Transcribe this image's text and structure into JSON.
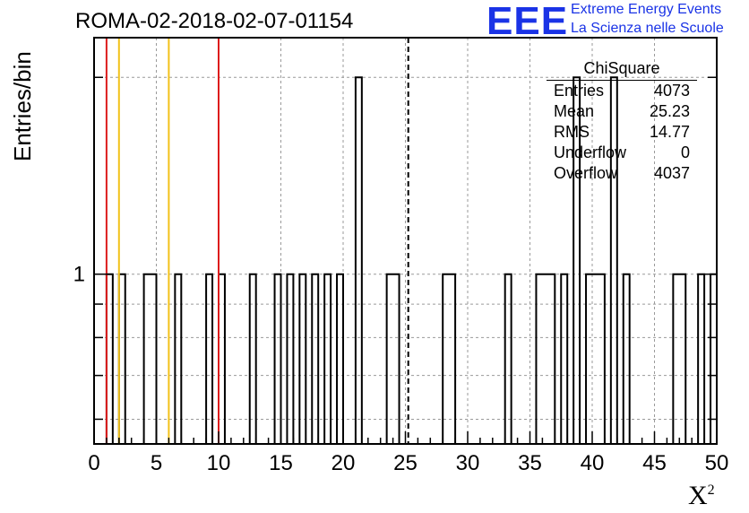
{
  "header": {
    "title": "ROMA-02-2018-02-07-01154",
    "logo_text": "EEE",
    "logo_line1": "Extreme Energy Events",
    "logo_line2": "La Scienza nelle Scuole"
  },
  "stats_box": {
    "title": "ChiSquare",
    "rows": [
      {
        "label": "Entries",
        "value": "4073"
      },
      {
        "label": "Mean",
        "value": "25.23"
      },
      {
        "label": "RMS",
        "value": "14.77"
      },
      {
        "label": "Underflow",
        "value": "0"
      },
      {
        "label": "Overflow",
        "value": "4037"
      }
    ]
  },
  "colors": {
    "red_line": "#dd1c1c",
    "yellow_line": "#f2c21a",
    "grid": "#9a9a9a",
    "logo": "#1a33e6"
  },
  "chart_data": {
    "type": "bar",
    "title": "ROMA-02-2018-02-07-01154",
    "xlabel": "X",
    "xlabel_sup": "2",
    "ylabel": "Entries/bin",
    "xlim": [
      0,
      50
    ],
    "ylim": [
      0.55,
      2.3
    ],
    "yscale": "log",
    "bin_width": 0.5,
    "x_ticks": [
      "0",
      "5",
      "10",
      "15",
      "20",
      "25",
      "30",
      "35",
      "40",
      "45",
      "50"
    ],
    "y_ticks": [
      "1"
    ],
    "grid": true,
    "bins": [
      {
        "x": 1.0,
        "y": 1
      },
      {
        "x": 2.0,
        "y": 1
      },
      {
        "x": 4.0,
        "y": 1
      },
      {
        "x": 4.5,
        "y": 1
      },
      {
        "x": 6.5,
        "y": 1
      },
      {
        "x": 9.0,
        "y": 1
      },
      {
        "x": 10.0,
        "y": 1
      },
      {
        "x": 12.5,
        "y": 1
      },
      {
        "x": 14.5,
        "y": 1
      },
      {
        "x": 15.5,
        "y": 1
      },
      {
        "x": 16.5,
        "y": 1
      },
      {
        "x": 17.5,
        "y": 1
      },
      {
        "x": 18.5,
        "y": 1
      },
      {
        "x": 19.5,
        "y": 1
      },
      {
        "x": 21.0,
        "y": 2
      },
      {
        "x": 23.5,
        "y": 1
      },
      {
        "x": 24.0,
        "y": 1
      },
      {
        "x": 28.0,
        "y": 1
      },
      {
        "x": 28.5,
        "y": 1
      },
      {
        "x": 33.0,
        "y": 1
      },
      {
        "x": 35.5,
        "y": 1
      },
      {
        "x": 36.0,
        "y": 1
      },
      {
        "x": 36.5,
        "y": 1
      },
      {
        "x": 37.5,
        "y": 1
      },
      {
        "x": 38.5,
        "y": 2
      },
      {
        "x": 39.5,
        "y": 1
      },
      {
        "x": 40.0,
        "y": 1
      },
      {
        "x": 40.5,
        "y": 1
      },
      {
        "x": 41.5,
        "y": 2
      },
      {
        "x": 42.5,
        "y": 1
      },
      {
        "x": 46.5,
        "y": 1
      },
      {
        "x": 47.0,
        "y": 1
      },
      {
        "x": 48.5,
        "y": 1
      },
      {
        "x": 49.5,
        "y": 1
      }
    ],
    "vertical_lines": [
      {
        "x": 1.0,
        "color": "red",
        "style": "solid"
      },
      {
        "x": 2.0,
        "color": "yellow",
        "style": "solid"
      },
      {
        "x": 6.0,
        "color": "yellow",
        "style": "solid"
      },
      {
        "x": 10.0,
        "color": "red",
        "style": "solid"
      },
      {
        "x": 25.23,
        "color": "black",
        "style": "dashed"
      }
    ]
  }
}
